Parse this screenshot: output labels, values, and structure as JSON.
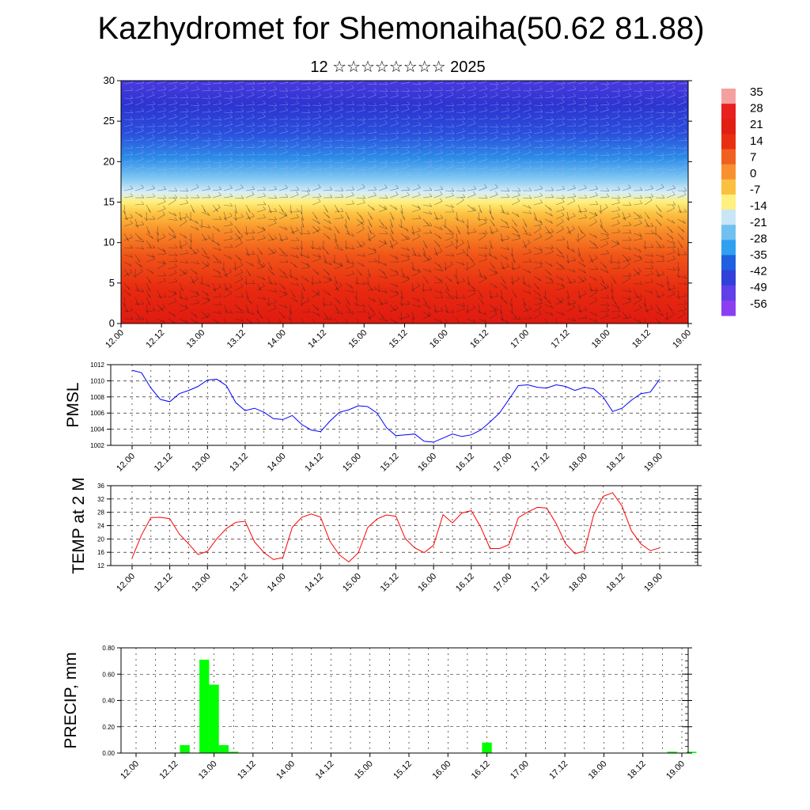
{
  "title": "Kazhydromet for Shemonaiha(50.62 81.88)",
  "subtitle": "12 ☆☆☆☆☆☆☆☆ 2025",
  "x_ticks": [
    "12.00",
    "12.12",
    "13.00",
    "13.12",
    "14.00",
    "14.12",
    "15.00",
    "15.12",
    "16.00",
    "16.12",
    "17.00",
    "17.12",
    "18.00",
    "18.12",
    "19.00"
  ],
  "colors": {
    "pmsl": "#0000ff",
    "temp": "#ff0000",
    "precip": "#00ff00"
  },
  "chart_data": [
    {
      "type": "heatmap",
      "title": "Kazhydromet for Shemonaiha(50.62 81.88)",
      "subtitle": "12 ☆☆☆☆☆☆☆☆ 2025",
      "ylim": [
        0,
        30
      ],
      "y_ticks": [
        "0",
        "5",
        "10",
        "15",
        "20",
        "25",
        "30"
      ],
      "colorbar_labels": [
        "35",
        "28",
        "21",
        "14",
        "7",
        "0",
        "-7",
        "-14",
        "-21",
        "-28",
        "-35",
        "-42",
        "-49",
        "-56"
      ],
      "colorbar_colors": [
        "#f4a0a0",
        "#e82020",
        "#e02010",
        "#e83010",
        "#f06020",
        "#f89030",
        "#fcc040",
        "#fff080",
        "#c8e6f5",
        "#70c0f0",
        "#30a0f0",
        "#2060e0",
        "#3040d8",
        "#6040e8",
        "#8a40f0"
      ],
      "overlay": "wind barbs"
    },
    {
      "type": "line",
      "ylabel": "PMSL",
      "ylim": [
        1002,
        1012
      ],
      "y_ticks": [
        "1002",
        "1004",
        "1006",
        "1008",
        "1010",
        "1012"
      ],
      "grid": true,
      "x": [
        0,
        3,
        6,
        9,
        12,
        15,
        18,
        21,
        24,
        27,
        30,
        33,
        36,
        39,
        42,
        45,
        48,
        51,
        54,
        57,
        60,
        63,
        66,
        69,
        72,
        75,
        78,
        81,
        84,
        87,
        90,
        93,
        96,
        99,
        102,
        105,
        108,
        111,
        114,
        117,
        120,
        123,
        126,
        129,
        132,
        135,
        138,
        141,
        144,
        147,
        150,
        153,
        156,
        159,
        162,
        165,
        168
      ],
      "series": [
        {
          "values": [
            1011.3,
            1011.0,
            1009.1,
            1007.7,
            1007.4,
            1008.4,
            1008.8,
            1009.3,
            1010.1,
            1010.2,
            1009.4,
            1007.3,
            1006.3,
            1006.6,
            1006.1,
            1005.3,
            1005.2,
            1005.7,
            1004.6,
            1003.9,
            1003.7,
            1005.0,
            1006.1,
            1006.4,
            1006.9,
            1006.8,
            1006.0,
            1004.2,
            1003.2,
            1003.3,
            1003.4,
            1002.5,
            1002.4,
            1002.9,
            1003.4,
            1003.1,
            1003.3,
            1003.9,
            1004.9,
            1006.0,
            1007.7,
            1009.4,
            1009.5,
            1009.2,
            1009.1,
            1009.5,
            1009.3,
            1008.8,
            1009.2,
            1009.0,
            1008.0,
            1006.2,
            1006.6,
            1007.6,
            1008.4,
            1008.6,
            1010.2
          ]
        }
      ]
    },
    {
      "type": "line",
      "ylabel": "TEMP at 2 M",
      "ylim": [
        12,
        36
      ],
      "y_ticks": [
        "12",
        "16",
        "20",
        "24",
        "28",
        "32",
        "36"
      ],
      "grid": true,
      "x": [
        0,
        3,
        6,
        9,
        12,
        15,
        18,
        21,
        24,
        27,
        30,
        33,
        36,
        39,
        42,
        45,
        48,
        51,
        54,
        57,
        60,
        63,
        66,
        69,
        72,
        75,
        78,
        81,
        84,
        87,
        90,
        93,
        96,
        99,
        102,
        105,
        108,
        111,
        114,
        117,
        120,
        123,
        126,
        129,
        132,
        135,
        138,
        141,
        144,
        147,
        150,
        153,
        156,
        159,
        162,
        165,
        168
      ],
      "series": [
        {
          "values": [
            14.3,
            21.2,
            26.4,
            26.5,
            26.1,
            21.5,
            18.5,
            15.3,
            16.3,
            20.1,
            23.1,
            25.0,
            25.3,
            19.1,
            15.9,
            13.8,
            14.4,
            23.5,
            26.5,
            27.5,
            26.6,
            19.3,
            15.2,
            13.1,
            15.8,
            23.4,
            26.0,
            27.2,
            26.8,
            20.1,
            17.3,
            15.9,
            18.1,
            27.3,
            24.8,
            27.8,
            28.5,
            23.6,
            17.1,
            17.1,
            18.3,
            26.4,
            28.1,
            29.5,
            29.3,
            24.7,
            18.6,
            15.6,
            16.3,
            27.3,
            32.8,
            33.9,
            29.9,
            22.4,
            18.5,
            16.5,
            17.3
          ]
        }
      ]
    },
    {
      "type": "bar",
      "ylabel": "PRECIP, mm",
      "ylim": [
        0,
        0.8
      ],
      "y_ticks": [
        "0.00",
        "0.20",
        "0.40",
        "0.60",
        "0.80"
      ],
      "grid": true,
      "x": [
        15,
        21,
        24,
        27,
        30,
        108,
        165,
        171
      ],
      "values": [
        0.06,
        0.71,
        0.52,
        0.06,
        0.01,
        0.08,
        0.01,
        0.01
      ]
    }
  ]
}
